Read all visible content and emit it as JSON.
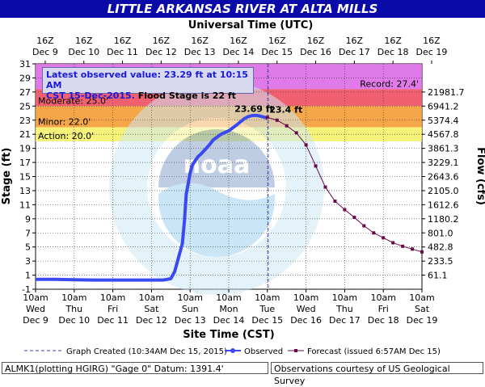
{
  "title": "LITTLE ARKANSAS RIVER AT ALTA MILLS",
  "colors": {
    "title_bg": "#0a0aa8",
    "record_band": "#e07ae8",
    "moderate_band": "#f06070",
    "minor_band": "#f4a648",
    "action_band": "#f6f27a",
    "observed": "#3a4af0",
    "forecast": "#6a0a4a"
  },
  "top_axis_title": "Universal Time (UTC)",
  "top_ticks": [
    {
      "l1": "16Z",
      "l2": "Dec 9"
    },
    {
      "l1": "16Z",
      "l2": "Dec 10"
    },
    {
      "l1": "16Z",
      "l2": "Dec 11"
    },
    {
      "l1": "16Z",
      "l2": "Dec 12"
    },
    {
      "l1": "16Z",
      "l2": "Dec 13"
    },
    {
      "l1": "16Z",
      "l2": "Dec 14"
    },
    {
      "l1": "16Z",
      "l2": "Dec 15"
    },
    {
      "l1": "16Z",
      "l2": "Dec 16"
    },
    {
      "l1": "16Z",
      "l2": "Dec 17"
    },
    {
      "l1": "16Z",
      "l2": "Dec 18"
    },
    {
      "l1": "16Z",
      "l2": "Dec 19"
    }
  ],
  "bottom_axis_title": "Site Time (CST)",
  "bottom_ticks": [
    {
      "l1": "10am",
      "l2": "Wed",
      "l3": "Dec 9"
    },
    {
      "l1": "10am",
      "l2": "Thu",
      "l3": "Dec 10"
    },
    {
      "l1": "10am",
      "l2": "Fri",
      "l3": "Dec 11"
    },
    {
      "l1": "10am",
      "l2": "Sat",
      "l3": "Dec 12"
    },
    {
      "l1": "10am",
      "l2": "Sun",
      "l3": "Dec 13"
    },
    {
      "l1": "10am",
      "l2": "Mon",
      "l3": "Dec 14"
    },
    {
      "l1": "10am",
      "l2": "Tue",
      "l3": "Dec 15"
    },
    {
      "l1": "10am",
      "l2": "Wed",
      "l3": "Dec 16"
    },
    {
      "l1": "10am",
      "l2": "Thu",
      "l3": "Dec 17"
    },
    {
      "l1": "10am",
      "l2": "Fri",
      "l3": "Dec 18"
    },
    {
      "l1": "10am",
      "l2": "Sat",
      "l3": "Dec 19"
    }
  ],
  "left_axis_title": "Stage (ft)",
  "right_axis_title": "Flow (cfs)",
  "left_ticks": [
    "-1",
    "1",
    "3",
    "5",
    "7",
    "9",
    "11",
    "13",
    "15",
    "17",
    "19",
    "21",
    "23",
    "25",
    "27",
    "29",
    "31"
  ],
  "right_ticks": [
    {
      "stage": 1,
      "label": "61.1"
    },
    {
      "stage": 3,
      "label": "233.5"
    },
    {
      "stage": 5,
      "label": "482.8"
    },
    {
      "stage": 7,
      "label": "801.0"
    },
    {
      "stage": 9,
      "label": "1180.2"
    },
    {
      "stage": 11,
      "label": "1612.6"
    },
    {
      "stage": 13,
      "label": "2105.0"
    },
    {
      "stage": 15,
      "label": "2643.6"
    },
    {
      "stage": 17,
      "label": "3229.1"
    },
    {
      "stage": 19,
      "label": "3861.3"
    },
    {
      "stage": 21,
      "label": "4567.8"
    },
    {
      "stage": 23,
      "label": "5374.4"
    },
    {
      "stage": 25,
      "label": "6941.2"
    },
    {
      "stage": 27,
      "label": "21981.7"
    }
  ],
  "flood_categories": [
    {
      "name": "Record",
      "label": "Record: 27.4'",
      "from": 27.4,
      "to": 31
    },
    {
      "name": "Moderate",
      "label": "Moderate: 25.0'",
      "from": 25.0,
      "to": 27.4
    },
    {
      "name": "Minor",
      "label": "Minor: 22.0'",
      "from": 22.0,
      "to": 25.0
    },
    {
      "name": "Action",
      "label": "Action: 20.0'",
      "from": 20.0,
      "to": 22.0
    }
  ],
  "latest": {
    "line1": "Latest observed value: 23.29 ft at 10:15 AM",
    "line2a": "CST 15-Dec-2015.",
    "line2b": " Flood Stage is 22 ft"
  },
  "peak_observed_label": "23.69 ft",
  "peak_forecast_label": "23.4 ft",
  "legend": {
    "created": "Graph Created (10:34AM Dec 15, 2015)",
    "observed": "Observed",
    "forecast": "Forecast (issued 6:57AM Dec 15)"
  },
  "footer_left": "ALMK1(plotting HGIRG) \"Gage 0\" Datum: 1391.4'",
  "footer_right": "Observations courtesy of US Geological Survey",
  "chart_data": {
    "type": "line",
    "x_unit": "days since Dec 9 10am CST",
    "ylim": [
      -1,
      31
    ],
    "xlim": [
      0,
      10
    ],
    "graph_created_x": 6.02,
    "series": [
      {
        "name": "Observed",
        "x": [
          0,
          0.5,
          1,
          1.5,
          2,
          2.5,
          3,
          3.3,
          3.5,
          3.6,
          3.7,
          3.8,
          3.85,
          3.9,
          3.95,
          4.0,
          4.05,
          4.1,
          4.2,
          4.3,
          4.4,
          4.5,
          4.6,
          4.7,
          4.8,
          5.0,
          5.2,
          5.4,
          5.5,
          5.6,
          5.7,
          5.8,
          5.9,
          6.0
        ],
        "y": [
          0.4,
          0.4,
          0.35,
          0.3,
          0.3,
          0.3,
          0.3,
          0.3,
          0.5,
          1.5,
          3.5,
          5.5,
          8.5,
          12.5,
          14.0,
          15.5,
          16.5,
          17.0,
          17.8,
          18.3,
          18.9,
          19.5,
          20.2,
          20.6,
          21.0,
          21.5,
          22.3,
          23.2,
          23.5,
          23.65,
          23.69,
          23.6,
          23.45,
          23.29
        ]
      },
      {
        "name": "Forecast",
        "x": [
          6.0,
          6.25,
          6.5,
          6.75,
          7.0,
          7.25,
          7.5,
          7.75,
          8.0,
          8.25,
          8.5,
          8.75,
          9.0,
          9.25,
          9.5,
          9.75,
          10.0
        ],
        "y": [
          23.4,
          23.0,
          22.2,
          21.2,
          19.5,
          16.5,
          13.5,
          11.5,
          10.3,
          9.2,
          8.0,
          7.0,
          6.3,
          5.6,
          5.1,
          4.7,
          4.3
        ]
      }
    ]
  }
}
